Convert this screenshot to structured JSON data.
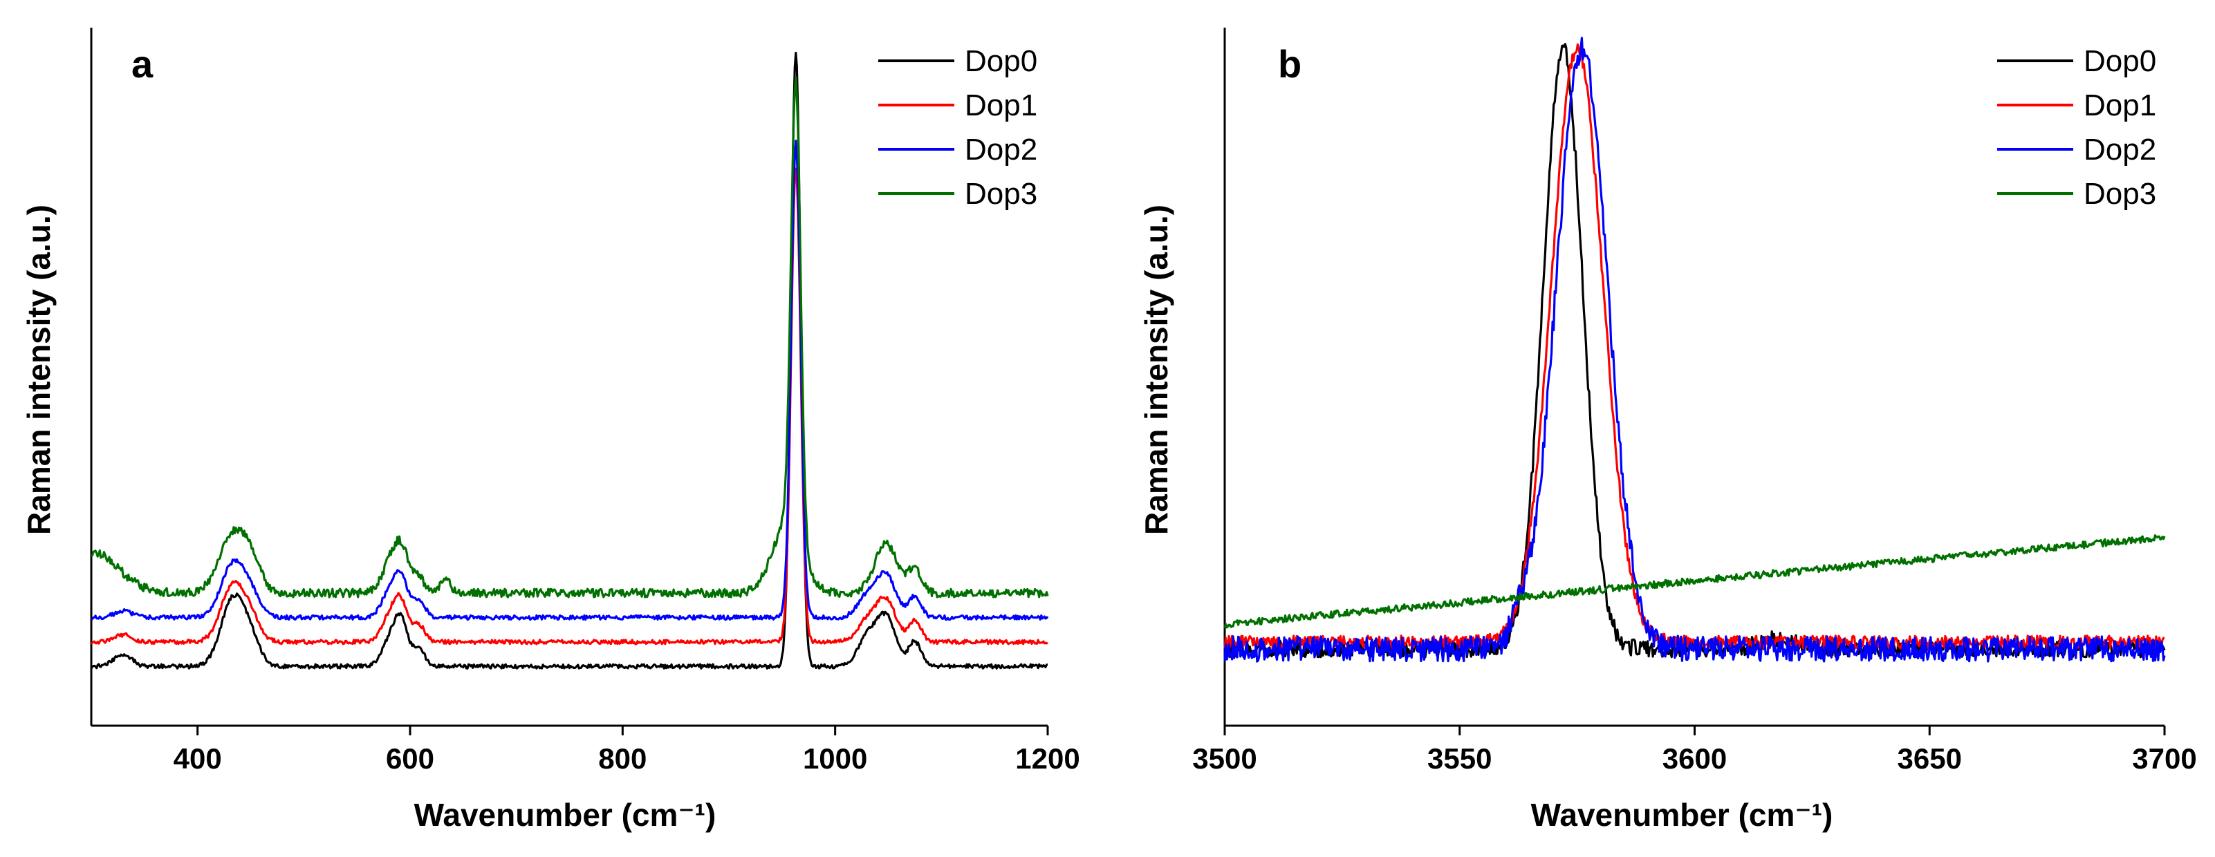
{
  "figure": {
    "description_free": true
  },
  "chart_data": [
    {
      "type": "line",
      "panel_label": "a",
      "title": "",
      "xlabel": "Wavenumber (cm⁻¹)",
      "ylabel": "Raman intensity (a.u.)",
      "xlim": [
        300,
        1200
      ],
      "ylim": [
        0,
        1.0
      ],
      "xticks": [
        400,
        600,
        800,
        1000,
        1200
      ],
      "tick_labels": [
        "400",
        "600",
        "800",
        "1000",
        "1200"
      ],
      "legend": "top-right",
      "series": [
        {
          "name": "Dop0",
          "color": "#000000",
          "baseline": 0.085,
          "peaks": [
            [
              330,
              0.018,
              8
            ],
            [
              433,
              0.095,
              11
            ],
            [
              450,
              0.035,
              9
            ],
            [
              582,
              0.04,
              8
            ],
            [
              592,
              0.055,
              6
            ],
            [
              608,
              0.025,
              6
            ],
            [
              963,
              0.88,
              4.5
            ],
            [
              1030,
              0.04,
              9
            ],
            [
              1048,
              0.07,
              9
            ],
            [
              1075,
              0.035,
              6
            ]
          ],
          "noise": 0.003
        },
        {
          "name": "Dop1",
          "color": "#ff0000",
          "baseline": 0.12,
          "peaks": [
            [
              330,
              0.01,
              8
            ],
            [
              433,
              0.08,
              11
            ],
            [
              450,
              0.03,
              9
            ],
            [
              582,
              0.04,
              8
            ],
            [
              592,
              0.045,
              6
            ],
            [
              608,
              0.025,
              6
            ],
            [
              963,
              0.68,
              4.5
            ],
            [
              1030,
              0.03,
              9
            ],
            [
              1048,
              0.06,
              9
            ],
            [
              1075,
              0.03,
              6
            ]
          ],
          "noise": 0.003
        },
        {
          "name": "Dop2",
          "color": "#0000ff",
          "baseline": 0.155,
          "peaks": [
            [
              330,
              0.01,
              8
            ],
            [
              433,
              0.075,
              11
            ],
            [
              450,
              0.03,
              9
            ],
            [
              582,
              0.04,
              8
            ],
            [
              592,
              0.045,
              6
            ],
            [
              608,
              0.025,
              6
            ],
            [
              963,
              0.68,
              4.5
            ],
            [
              1030,
              0.03,
              9
            ],
            [
              1048,
              0.06,
              9
            ],
            [
              1075,
              0.03,
              6
            ]
          ],
          "noise": 0.003
        },
        {
          "name": "Dop3",
          "color": "#007000",
          "baseline": 0.19,
          "peaks": [
            [
              300,
              0.06,
              25
            ],
            [
              433,
              0.08,
              13
            ],
            [
              450,
              0.035,
              10
            ],
            [
              582,
              0.04,
              9
            ],
            [
              592,
              0.05,
              7
            ],
            [
              608,
              0.02,
              7
            ],
            [
              633,
              0.025,
              4
            ],
            [
              955,
              0.1,
              14
            ],
            [
              963,
              0.65,
              4.5
            ],
            [
              1048,
              0.07,
              11
            ],
            [
              1075,
              0.035,
              6
            ]
          ],
          "noise": 0.006
        }
      ]
    },
    {
      "type": "line",
      "panel_label": "b",
      "title": "",
      "xlabel": "Wavenumber (cm⁻¹)",
      "ylabel": "Raman intensity (a.u.)",
      "xlim": [
        3500,
        3700
      ],
      "ylim": [
        0,
        1.0
      ],
      "xticks": [
        3500,
        3550,
        3600,
        3650,
        3700
      ],
      "tick_labels": [
        "3500",
        "3550",
        "3600",
        "3650",
        "3700"
      ],
      "legend": "top-right",
      "series": [
        {
          "name": "Dop0",
          "color": "#000000",
          "baseline": 0.11,
          "peaks": [
            [
              3572,
              0.86,
              4.2
            ],
            [
              3618,
              0.015,
              4
            ]
          ],
          "noise": 0.012
        },
        {
          "name": "Dop1",
          "color": "#ff0000",
          "baseline": 0.12,
          "peaks": [
            [
              3575,
              0.85,
              5.5
            ]
          ],
          "noise": 0.009
        },
        {
          "name": "Dop2",
          "color": "#0000ff",
          "baseline": 0.11,
          "peaks": [
            [
              3576,
              0.86,
              5.5
            ],
            [
              3563,
              0.03,
              2
            ]
          ],
          "noise": 0.018
        },
        {
          "name": "Dop3",
          "color": "#007000",
          "baseline": 0.145,
          "slope": 0.125,
          "peaks": [],
          "noise": 0.005
        }
      ]
    }
  ]
}
